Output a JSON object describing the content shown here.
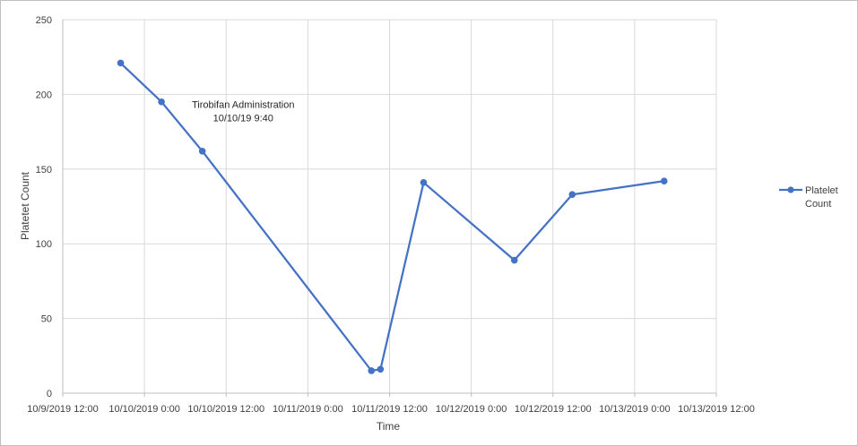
{
  "chart_data": {
    "type": "scatter",
    "title": "",
    "xlabel": "Time",
    "ylabel": "Platetet Count",
    "xlim": [
      "2019-10-09T12:00",
      "2019-10-13T12:00"
    ],
    "ylim": [
      0,
      250
    ],
    "y_ticks": [
      "0",
      "50",
      "100",
      "150",
      "200",
      "250"
    ],
    "x_ticks": [
      "10/9/2019 12:00",
      "10/10/2019 0:00",
      "10/10/2019 12:00",
      "10/11/2019 0:00",
      "10/11/2019 12:00",
      "10/12/2019 0:00",
      "10/12/2019 12:00",
      "10/13/2019 0:00",
      "10/13/2019 12:00"
    ],
    "grid": true,
    "legend_position": "right",
    "series": [
      {
        "name": "Platelet Count",
        "color": "#4472c4",
        "x": [
          "2019-10-09T20:30",
          "2019-10-10T02:30",
          "2019-10-10T08:30",
          "2019-10-11T09:20",
          "2019-10-11T10:40",
          "2019-10-11T17:00",
          "2019-10-12T06:20",
          "2019-10-12T14:50",
          "2019-10-13T04:20"
        ],
        "y": [
          221,
          195,
          162,
          15,
          16,
          141,
          89,
          133,
          142
        ]
      }
    ],
    "annotations": [
      {
        "text": "Tirobifan Administration",
        "x": "2019-10-10T14:30",
        "y": 191
      },
      {
        "text": "10/10/19  9:40",
        "x": "2019-10-10T14:30",
        "y": 182
      }
    ]
  },
  "legend": {
    "line1": "Platelet",
    "line2": "Count"
  }
}
